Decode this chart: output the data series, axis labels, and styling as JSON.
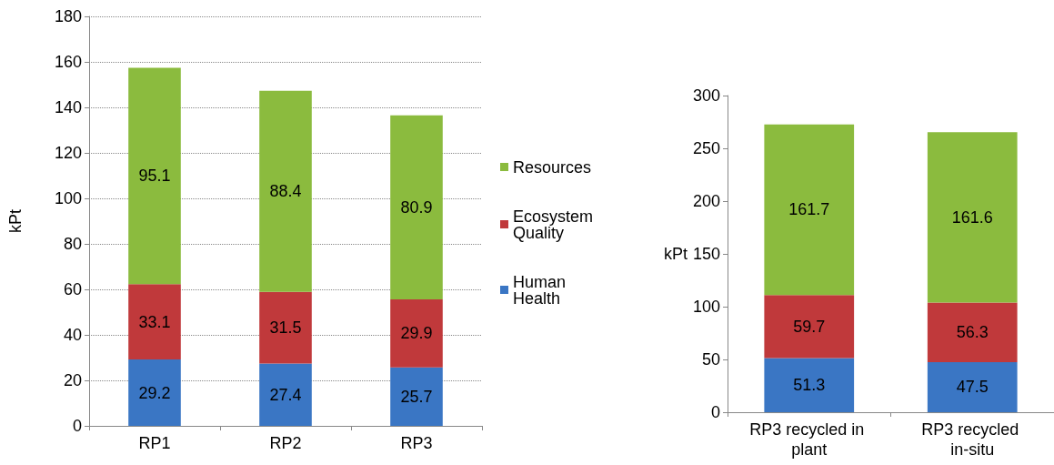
{
  "chart_data": [
    {
      "type": "bar",
      "stacked": true,
      "ylabel": "kPt",
      "categories": [
        "RP1",
        "RP2",
        "RP3"
      ],
      "series": [
        {
          "name": "Human Health",
          "color": "#3a76c4",
          "values": [
            29.2,
            27.4,
            25.7
          ]
        },
        {
          "name": "Ecosystem Quality",
          "color": "#c0393b",
          "values": [
            33.1,
            31.5,
            29.9
          ]
        },
        {
          "name": "Resources",
          "color": "#8bbb3e",
          "values": [
            95.1,
            88.4,
            80.9
          ]
        }
      ],
      "ylim": [
        0,
        180
      ],
      "yticks": [
        0,
        20,
        40,
        60,
        80,
        100,
        120,
        140,
        160,
        180
      ],
      "grid": "y",
      "legend": "right",
      "data_labels": true
    },
    {
      "type": "bar",
      "stacked": true,
      "ylabel": "kPt",
      "categories": [
        "RP3 recycled in plant",
        "RP3 recycled in-situ"
      ],
      "series": [
        {
          "color": "#3a76c4",
          "values": [
            51.3,
            47.5
          ]
        },
        {
          "color": "#c0393b",
          "values": [
            59.7,
            56.3
          ]
        },
        {
          "color": "#8bbb3e",
          "values": [
            161.7,
            161.6
          ]
        }
      ],
      "ylim": [
        0,
        300
      ],
      "yticks": [
        0,
        50,
        100,
        150,
        200,
        250,
        300
      ],
      "legend": false,
      "data_labels": true
    }
  ]
}
